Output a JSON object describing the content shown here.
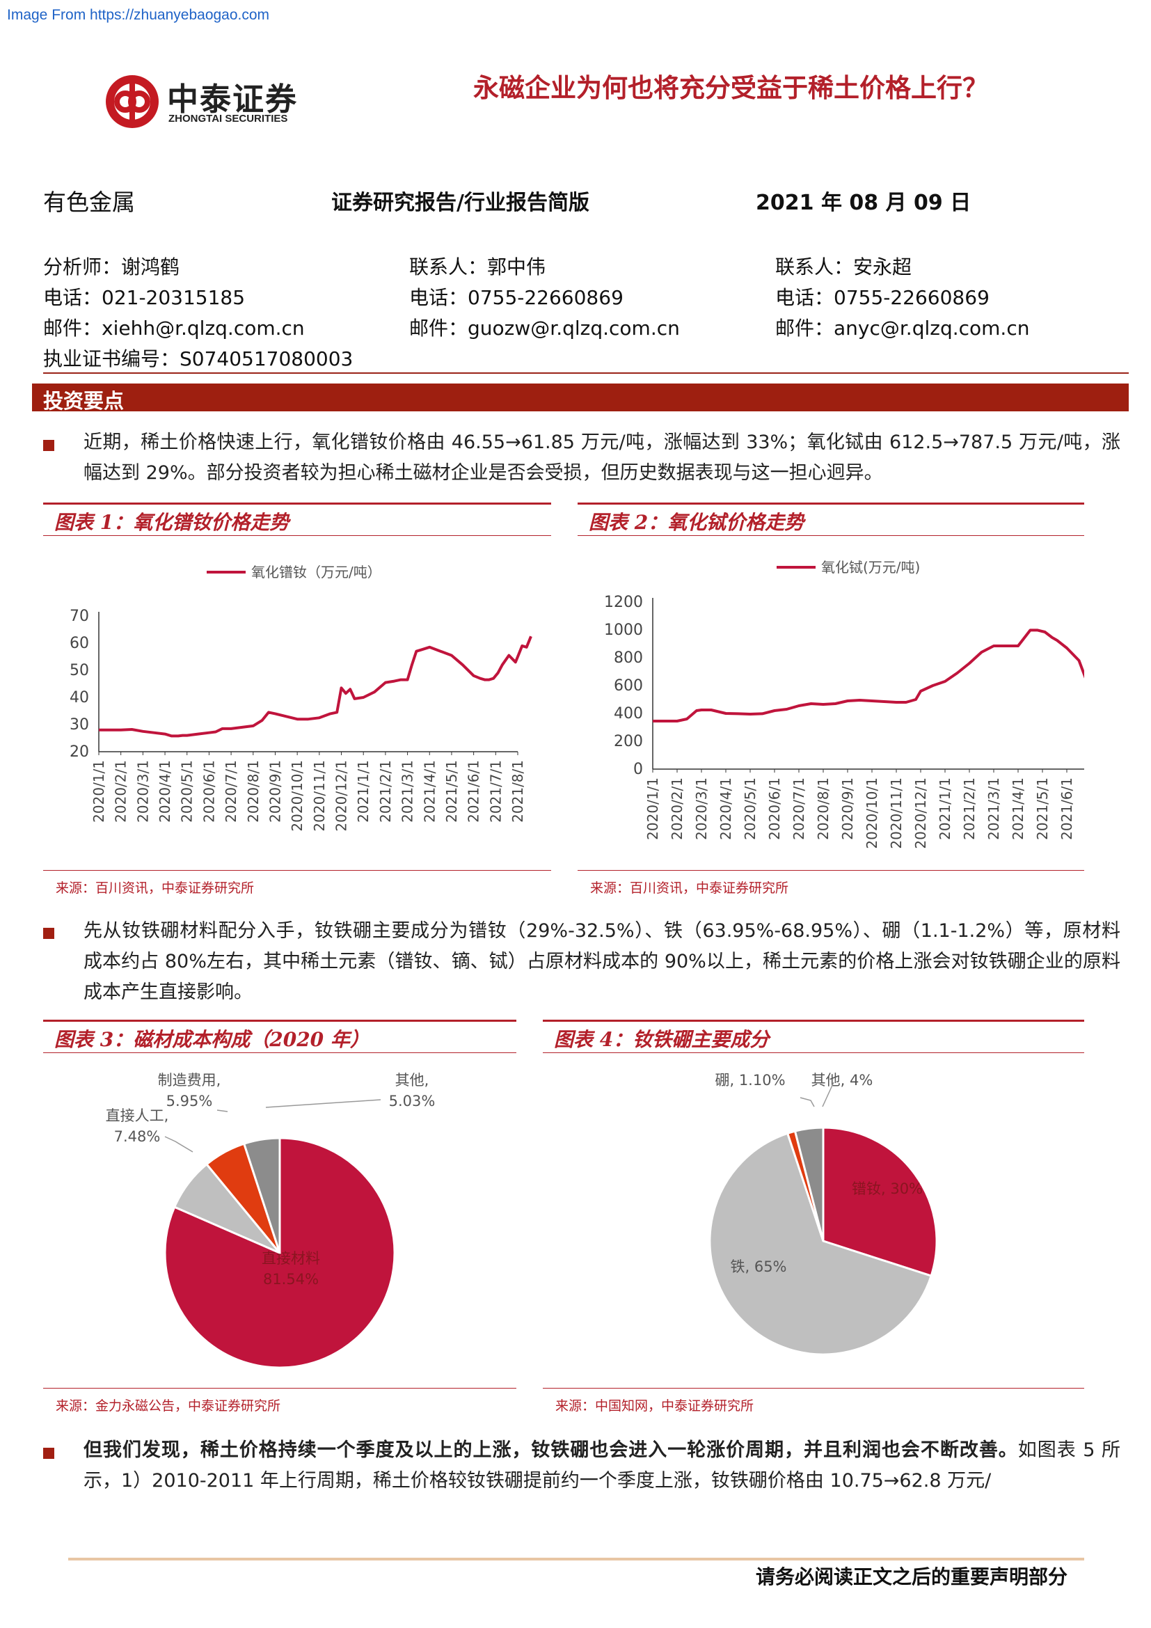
{
  "watermark": "Image From https://zhuanyebaogao.com",
  "logo": {
    "cn": "中泰证券",
    "en": "ZHONGTAI SECURITIES"
  },
  "headline": "永磁企业为何也将充分受益于稀土价格上行？",
  "meta": {
    "sector": "有色金属",
    "report_type": "证券研究报告/行业报告简版",
    "date": "2021 年 08 月 09 日"
  },
  "contacts": [
    {
      "role": "分析师：谢鸿鹤",
      "phone": "电话：021-20315185",
      "email": "邮件：xiehh@r.qlzq.com.cn",
      "license": "执业证书编号：S0740517080003"
    },
    {
      "role": "联系人：郭中伟",
      "phone": "电话：0755-22660869",
      "email": "邮件：guozw@r.qlzq.com.cn"
    },
    {
      "role": "联系人：安永超",
      "phone": "电话：0755-22660869",
      "email": "邮件：anyc@r.qlzq.com.cn"
    }
  ],
  "section_title": "投资要点",
  "paragraphs": {
    "p1": "近期，稀土价格快速上行，氧化镨钕价格由 46.55→61.85 万元/吨，涨幅达到 33%；氧化铽由 612.5→787.5 万元/吨，涨幅达到 29%。部分投资者较为担心稀土磁材企业是否会受损，但历史数据表现与这一担心迥异。",
    "p2": "先从钕铁硼材料配分入手，钕铁硼主要成分为镨钕（29%-32.5%）、铁（63.95%-68.95%）、硼（1.1-1.2%）等，原材料成本约占 80%左右，其中稀土元素（镨钕、镝、铽）占原材料成本的 90%以上，稀土元素的价格上涨会对钕铁硼企业的原料成本产生直接影响。",
    "p3_bold": "但我们发现，稀土价格持续一个季度及以上的上涨，钕铁硼也会进入一轮涨价周期，并且利润也会不断改善。",
    "p3_rest": "如图表 5 所示，1）2010-2011 年上行周期，稀土价格较钕铁硼提前约一个季度上涨，钕铁硼价格由 10.75→62.8 万元/"
  },
  "figures": {
    "fig1": {
      "title": "图表 1：氧化镨钕价格走势",
      "source": "来源：百川资讯，中泰证券研究所"
    },
    "fig2": {
      "title": "图表 2：氧化铽价格走势",
      "source": "来源：百川资讯，中泰证券研究所"
    },
    "fig3": {
      "title": "图表 3：磁材成本构成（2020 年）",
      "source": "来源：金力永磁公告，中泰证券研究所"
    },
    "fig4": {
      "title": "图表 4：钕铁硼主要成分",
      "source": "来源：中国知网，中泰证券研究所"
    }
  },
  "chart_data": [
    {
      "type": "line",
      "legend": "氧化镨钕（万元/吨）",
      "series_color": "#c0143c",
      "ylim": [
        20,
        70
      ],
      "yticks": [
        20,
        30,
        40,
        50,
        60,
        70
      ],
      "xticks": [
        "2020/1/1",
        "2020/2/1",
        "2020/3/1",
        "2020/4/1",
        "2020/5/1",
        "2020/6/1",
        "2020/7/1",
        "2020/8/1",
        "2020/9/1",
        "2020/10/1",
        "2020/11/1",
        "2020/12/1",
        "2021/1/1",
        "2021/2/1",
        "2021/3/1",
        "2021/4/1",
        "2021/5/1",
        "2021/6/1",
        "2021/7/1",
        "2021/8/1"
      ],
      "x": [
        0,
        0.5,
        1,
        1.5,
        2,
        2.5,
        3,
        3.3,
        3.6,
        3.8,
        4,
        4.5,
        5,
        5.3,
        5.6,
        6,
        6.5,
        7,
        7.4,
        7.7,
        8,
        8.5,
        9,
        9.5,
        10,
        10.5,
        10.8,
        11,
        11.2,
        11.4,
        11.6,
        12,
        12.5,
        13,
        13.4,
        13.7,
        14,
        14.2,
        14.4,
        14.6,
        15,
        15.5,
        16,
        16.5,
        17,
        17.3,
        17.5,
        17.7,
        17.9,
        18.1,
        18.3,
        18.6,
        18.9,
        19,
        19.2,
        19.4,
        19.6
      ],
      "values": [
        28,
        28,
        28,
        28.2,
        27.5,
        27,
        26.5,
        25.8,
        25.8,
        26,
        26,
        26.5,
        27,
        27.3,
        28.5,
        28.5,
        29,
        29.5,
        31.5,
        34.5,
        34,
        33,
        32,
        32,
        32.5,
        34,
        34.5,
        43.5,
        41.5,
        43,
        39.5,
        40,
        42,
        45.5,
        46,
        46.5,
        46.5,
        52,
        57,
        57.5,
        58.5,
        57,
        55.5,
        52,
        48,
        47,
        46.5,
        46.5,
        47,
        49,
        52,
        55.5,
        53,
        55,
        59,
        58.5,
        62.5
      ]
    },
    {
      "type": "line",
      "legend": "氧化铽(万元/吨)",
      "series_color": "#c0143c",
      "ylim": [
        0,
        1200
      ],
      "yticks": [
        0,
        200,
        400,
        600,
        800,
        1000,
        1200
      ],
      "xticks": [
        "2020/1/1",
        "2020/2/1",
        "2020/3/1",
        "2020/4/1",
        "2020/5/1",
        "2020/6/1",
        "2020/7/1",
        "2020/8/1",
        "2020/9/1",
        "2020/10/1",
        "2020/11/1",
        "2020/12/1",
        "2021/1/1",
        "2021/2/1",
        "2021/3/1",
        "2021/4/1",
        "2021/5/1",
        "2021/6/1",
        "2021/7/1"
      ],
      "x": [
        0,
        0.5,
        1,
        1.4,
        1.8,
        2,
        2.4,
        3,
        3.5,
        4,
        4.5,
        5,
        5.5,
        6,
        6.5,
        7,
        7.5,
        8,
        8.5,
        9,
        9.5,
        10,
        10.4,
        10.8,
        11,
        11.5,
        12,
        12.5,
        13,
        13.5,
        14,
        14.3,
        14.6,
        15,
        15.5,
        15.8,
        16.1,
        16.4,
        16.6,
        17,
        17.5,
        17.8,
        18,
        18.2,
        18.5,
        18.8,
        19
      ],
      "values": [
        345,
        345,
        345,
        360,
        420,
        425,
        425,
        400,
        398,
        395,
        398,
        420,
        430,
        455,
        470,
        465,
        470,
        490,
        495,
        490,
        485,
        480,
        480,
        500,
        560,
        600,
        630,
        690,
        760,
        840,
        885,
        885,
        885,
        885,
        998,
        998,
        985,
        945,
        925,
        870,
        780,
        640,
        610,
        640,
        630,
        610,
        620
      ]
    },
    {
      "type": "pie",
      "slices": [
        {
          "label": "直接材料",
          "value": 81.54,
          "display": "81.54%",
          "color": "#c0143c"
        },
        {
          "label": "直接人工",
          "value": 7.48,
          "display": "7.48%",
          "color": "#bfbfbf"
        },
        {
          "label": "制造费用",
          "value": 5.95,
          "display": "5.95%",
          "color": "#e03c10"
        },
        {
          "label": "其他",
          "value": 5.03,
          "display": "5.03%",
          "color": "#8c8c8c"
        }
      ]
    },
    {
      "type": "pie",
      "slices": [
        {
          "label": "镨钕",
          "value": 30,
          "display": "30%",
          "color": "#c0143c"
        },
        {
          "label": "铁",
          "value": 65,
          "display": "65%",
          "color": "#bfbfbf"
        },
        {
          "label": "硼",
          "value": 1.1,
          "display": "1.10%",
          "color": "#e03c10"
        },
        {
          "label": "其他",
          "value": 4,
          "display": "4%",
          "color": "#8c8c8c"
        }
      ]
    }
  ],
  "footer": "请务必阅读正文之后的重要声明部分"
}
